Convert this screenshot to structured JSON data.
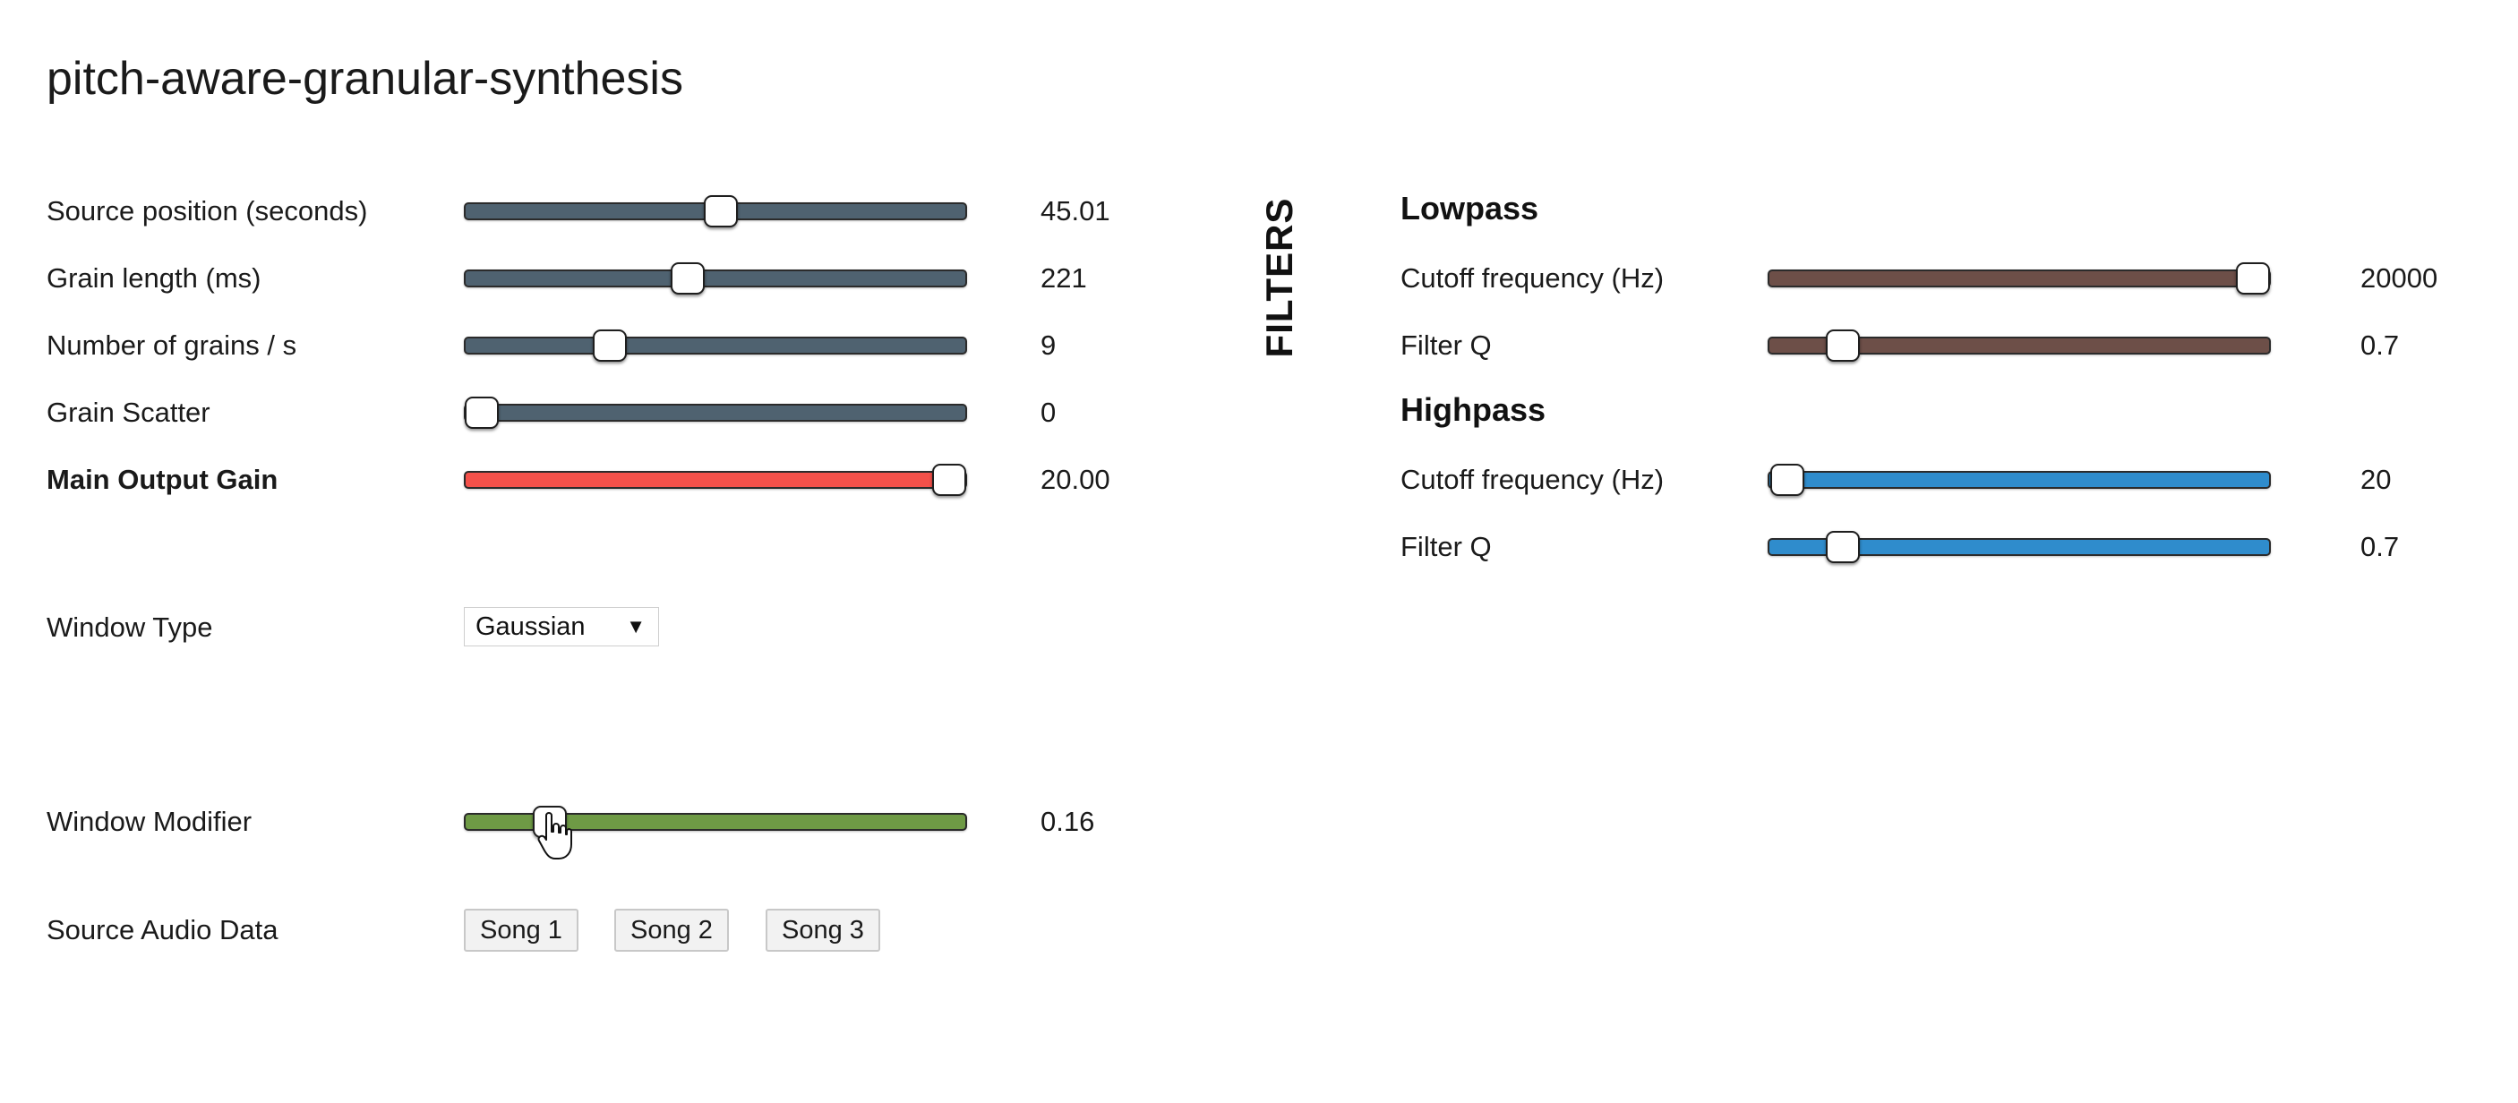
{
  "app": {
    "title": "pitch-aware-granular-synthesis"
  },
  "controls": [
    {
      "id": "source-position",
      "label": "Source position (seconds)",
      "value_text": "45.01",
      "fraction": 0.51,
      "bold": false,
      "color": "#4f6270"
    },
    {
      "id": "grain-length",
      "label": "Grain length (ms)",
      "value_text": "221",
      "fraction": 0.445,
      "bold": false,
      "color": "#4f6270"
    },
    {
      "id": "grains-per-second",
      "label": "Number of grains / s",
      "value_text": "9",
      "fraction": 0.29,
      "bold": false,
      "color": "#4f6270"
    },
    {
      "id": "grain-scatter",
      "label": "Grain Scatter",
      "value_text": "0",
      "fraction": 0.035,
      "bold": false,
      "color": "#4f6270"
    },
    {
      "id": "main-output-gain",
      "label": "Main Output Gain",
      "value_text": "20.00",
      "fraction": 0.965,
      "bold": true,
      "color": "#f4514a"
    }
  ],
  "window_type": {
    "label": "Window Type",
    "selected": "Gaussian"
  },
  "window_modifier": {
    "label": "Window Modifier",
    "value_text": "0.16",
    "fraction": 0.17,
    "color": "#6e9a45"
  },
  "source_audio": {
    "label": "Source Audio Data",
    "buttons": [
      "Song 1",
      "Song 2",
      "Song 3"
    ]
  },
  "filters": {
    "heading": "FILTERS",
    "lowpass": {
      "heading": "Lowpass",
      "color": "#6d4f48",
      "controls": [
        {
          "id": "lowpass-cutoff",
          "label": "Cutoff frequency (Hz)",
          "value_text": "20000",
          "fraction": 0.965
        },
        {
          "id": "lowpass-q",
          "label": "Filter Q",
          "value_text": "0.7",
          "fraction": 0.15
        }
      ]
    },
    "highpass": {
      "heading": "Highpass",
      "color": "#2f8ccc",
      "controls": [
        {
          "id": "highpass-cutoff",
          "label": "Cutoff frequency (Hz)",
          "value_text": "20",
          "fraction": 0.04
        },
        {
          "id": "highpass-q",
          "label": "Filter Q",
          "value_text": "0.7",
          "fraction": 0.15
        }
      ]
    }
  }
}
